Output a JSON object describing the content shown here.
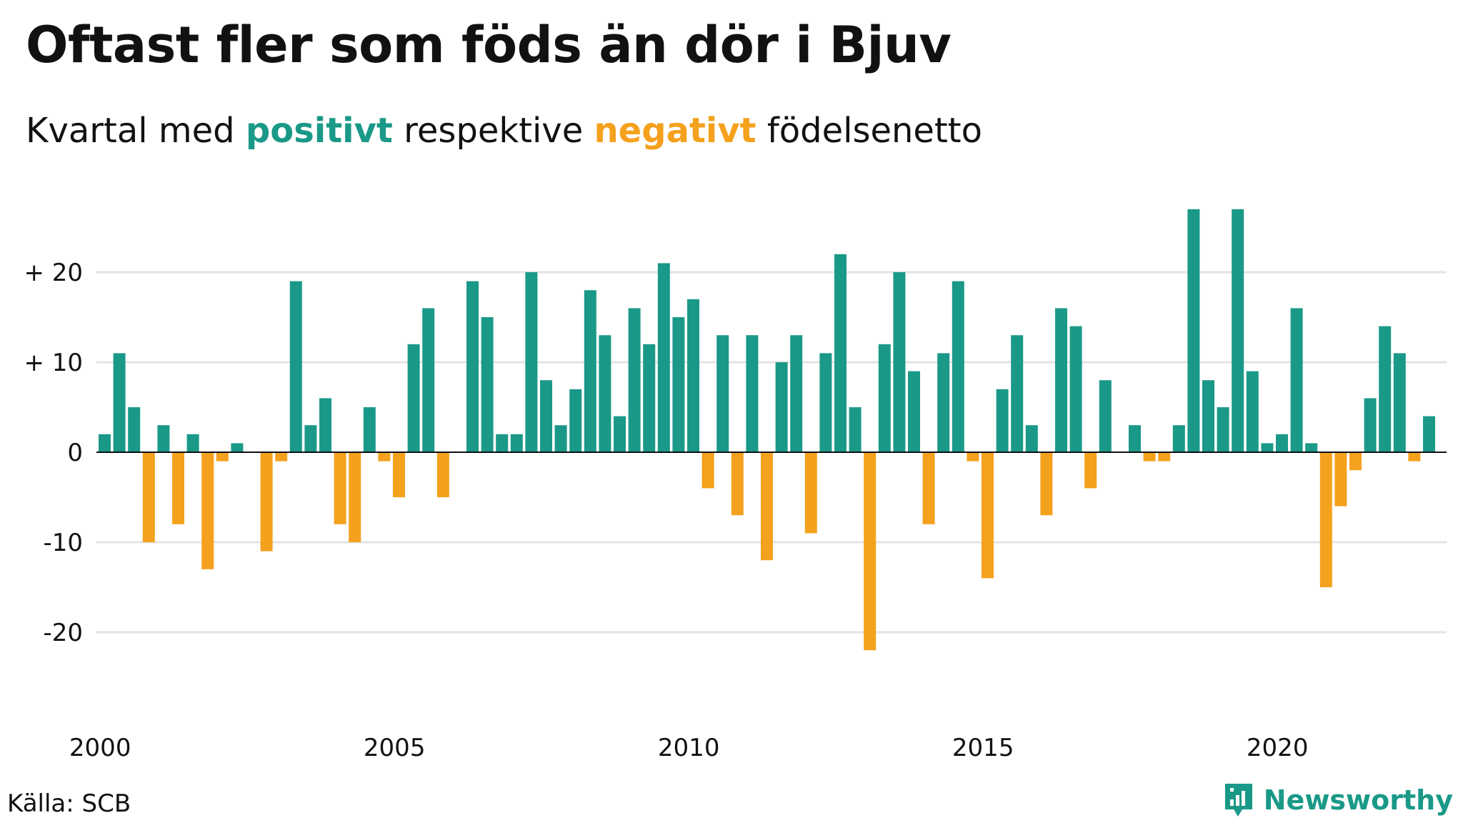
{
  "title": "Oftast fler som föds än dör i Bjuv",
  "subtitle": {
    "prefix": "Kvartal med ",
    "positive": "positivt",
    "middle": " respektive ",
    "negative": "negativt",
    "suffix": " födelsenetto"
  },
  "source": "Källa: SCB",
  "brand": "Newsworthy",
  "colors": {
    "positive": "#1a9988",
    "negative": "#f4a11d",
    "grid": "#e3e3e3",
    "zero": "#111111"
  },
  "chart_data": {
    "type": "bar",
    "start_year": 2000,
    "start_quarter": 1,
    "x_ticks": [
      "2000",
      "2005",
      "2010",
      "2015",
      "2020"
    ],
    "y_ticks": [
      {
        "value": 20,
        "label": "+ 20"
      },
      {
        "value": 10,
        "label": "+ 10"
      },
      {
        "value": 0,
        "label": "0"
      },
      {
        "value": -10,
        "label": "-10"
      },
      {
        "value": -20,
        "label": "-20"
      }
    ],
    "ylim": [
      -28,
      27
    ],
    "grid": true,
    "values": [
      2,
      11,
      5,
      -10,
      3,
      -8,
      2,
      -13,
      -1,
      1,
      0,
      -11,
      -1,
      19,
      3,
      6,
      -8,
      -10,
      5,
      -1,
      -5,
      12,
      16,
      -5,
      0,
      19,
      15,
      2,
      2,
      20,
      8,
      3,
      7,
      18,
      13,
      4,
      16,
      12,
      21,
      15,
      17,
      -4,
      13,
      -7,
      13,
      -12,
      10,
      13,
      -9,
      11,
      22,
      5,
      -22,
      12,
      20,
      9,
      -8,
      11,
      19,
      -1,
      -14,
      7,
      13,
      3,
      -7,
      16,
      14,
      -4,
      8,
      0,
      3,
      -1,
      -1,
      3,
      27,
      8,
      5,
      27,
      9,
      1,
      2,
      16,
      1,
      -15,
      -6,
      -2,
      6,
      14,
      11,
      -1,
      4
    ]
  }
}
